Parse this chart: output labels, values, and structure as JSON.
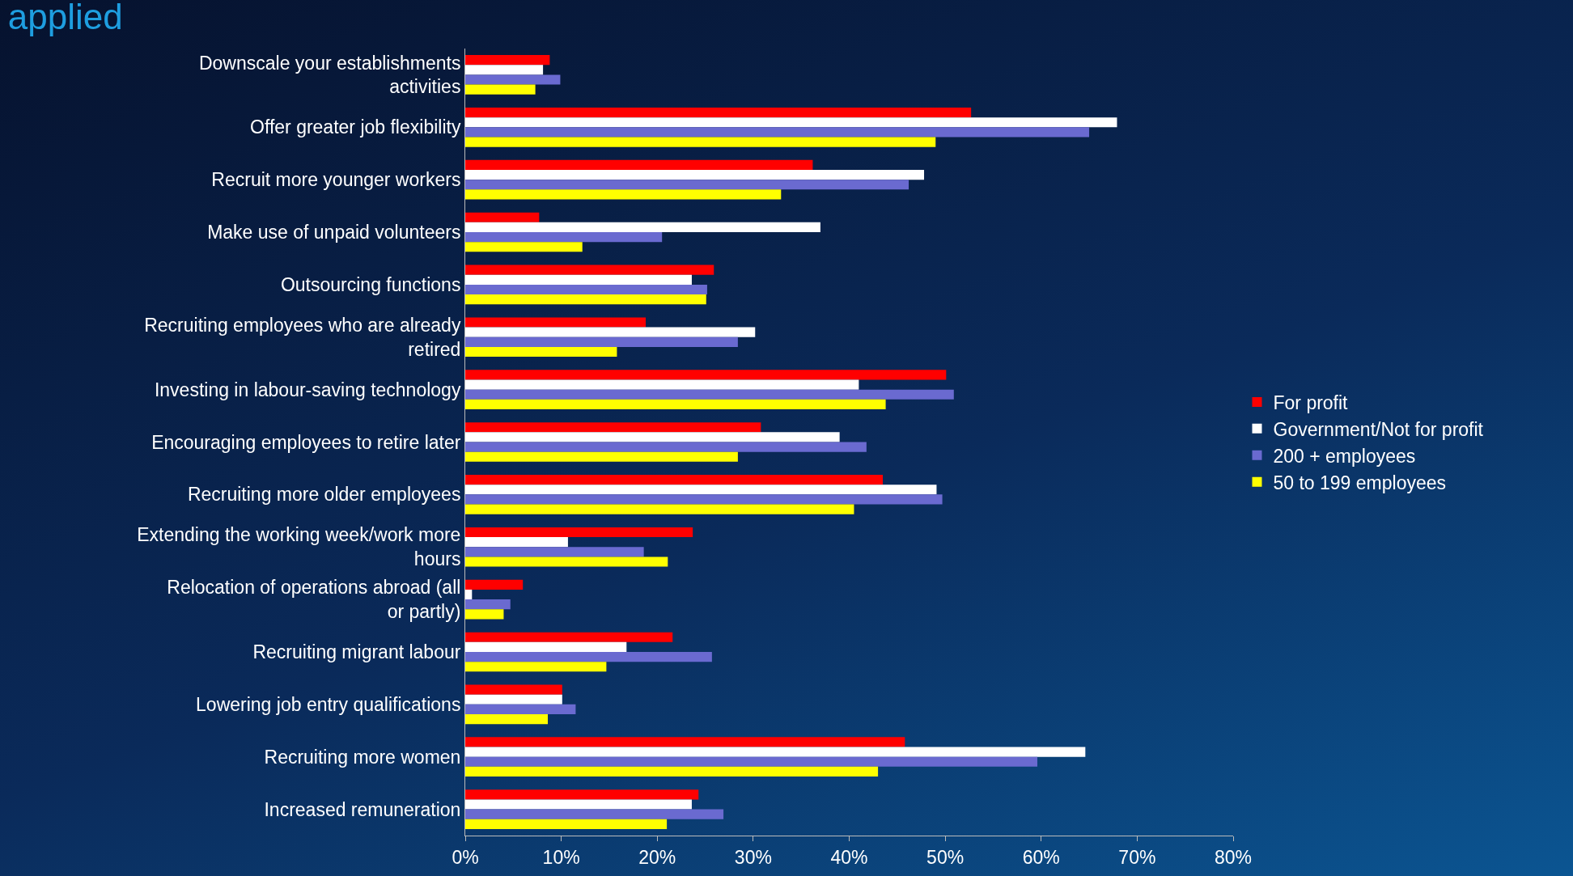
{
  "chart_data": {
    "type": "bar",
    "orientation": "horizontal",
    "title": "applied",
    "categories": [
      "Downscale your establishments activities",
      "Offer greater job flexibility",
      "Recruit more younger workers",
      "Make use of unpaid volunteers",
      "Outsourcing functions",
      "Recruiting employees who are already retired",
      "Investing in labour-saving technology",
      "Encouraging employees to retire later",
      "Recruiting more older employees",
      "Extending the working week/work more hours",
      "Relocation of operations abroad (all or partly)",
      "Recruiting migrant labour",
      "Lowering job entry qualifications",
      "Recruiting more women",
      "Increased remuneration"
    ],
    "series": [
      {
        "name": "For profit",
        "color": "#ff0000",
        "values": [
          8.8,
          52.7,
          36.2,
          7.7,
          25.9,
          18.8,
          50.1,
          30.8,
          43.5,
          23.7,
          6.0,
          21.6,
          10.1,
          45.8,
          24.3
        ]
      },
      {
        "name": "Government/Not for profit",
        "color": "#ffffff",
        "values": [
          8.1,
          67.9,
          47.8,
          37.0,
          23.6,
          30.2,
          41.0,
          39.0,
          49.1,
          10.7,
          0.7,
          16.8,
          10.1,
          64.6,
          23.6
        ]
      },
      {
        "name": "200 + employees",
        "color": "#6a6ad0",
        "values": [
          9.9,
          65.0,
          46.2,
          20.5,
          25.2,
          28.4,
          50.9,
          41.8,
          49.7,
          18.6,
          4.7,
          25.7,
          11.5,
          59.6,
          26.9
        ]
      },
      {
        "name": "50 to 199 employees",
        "color": "#ffff00",
        "values": [
          7.3,
          49.0,
          32.9,
          12.2,
          25.1,
          15.8,
          43.8,
          28.4,
          40.5,
          21.1,
          4.0,
          14.7,
          8.6,
          43.0,
          21.0
        ]
      }
    ],
    "xlim": [
      0,
      80
    ],
    "xticks": [
      {
        "value": 0,
        "label": "0%"
      },
      {
        "value": 10,
        "label": "10%"
      },
      {
        "value": 20,
        "label": "20%"
      },
      {
        "value": 30,
        "label": "30%"
      },
      {
        "value": 40,
        "label": "40%"
      },
      {
        "value": 50,
        "label": "50%"
      },
      {
        "value": 60,
        "label": "60%"
      },
      {
        "value": 70,
        "label": "70%"
      },
      {
        "value": 80,
        "label": "80%"
      }
    ],
    "grid": false,
    "legend": "right"
  }
}
